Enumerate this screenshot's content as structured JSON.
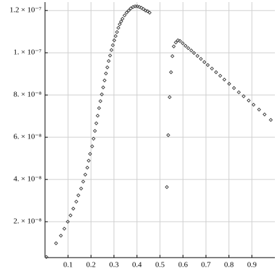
{
  "chart_data": {
    "type": "scatter",
    "xlim": [
      0,
      1
    ],
    "ylim": [
      3e-09,
      1.24e-07
    ],
    "xticks": [
      0.1,
      0.2,
      0.3,
      0.4,
      0.5,
      0.6,
      0.7,
      0.8,
      0.9
    ],
    "yticks": [
      {
        "value": 2e-08,
        "label": "2. × 10⁻⁸"
      },
      {
        "value": 4e-08,
        "label": "4. × 10⁻⁸"
      },
      {
        "value": 6e-08,
        "label": "6. × 10⁻⁸"
      },
      {
        "value": 8e-08,
        "label": "8. × 10⁻⁸"
      },
      {
        "value": 1e-07,
        "label": "1. × 10⁻⁷"
      },
      {
        "value": 1.2e-07,
        "label": "1.2 × 10⁻⁷"
      }
    ],
    "grid": true,
    "series": [
      {
        "color": "#333333",
        "x": [
          0.006,
          0.048,
          0.069,
          0.084,
          0.099,
          0.111,
          0.123,
          0.136,
          0.145,
          0.157,
          0.166,
          0.175,
          0.184,
          0.19,
          0.196,
          0.205,
          0.211,
          0.217,
          0.223,
          0.229,
          0.235,
          0.241,
          0.247,
          0.253,
          0.259,
          0.265,
          0.271,
          0.277,
          0.283,
          0.289,
          0.295,
          0.301,
          0.307,
          0.313,
          0.319,
          0.325,
          0.331,
          0.337,
          0.346,
          0.355,
          0.364,
          0.373,
          0.383,
          0.392,
          0.401,
          0.41,
          0.419,
          0.428,
          0.437,
          0.446,
          0.455,
          0.53,
          0.536,
          0.542,
          0.548,
          0.554,
          0.56,
          0.569,
          0.578,
          0.587,
          0.599,
          0.611,
          0.623,
          0.636,
          0.648,
          0.663,
          0.678,
          0.693,
          0.708,
          0.726,
          0.744,
          0.762,
          0.78,
          0.801,
          0.822,
          0.843,
          0.864,
          0.886,
          0.907,
          0.931,
          0.955,
          0.982
        ],
        "values": [
          3.3e-09,
          9.8e-09,
          1.34e-08,
          1.67e-08,
          2e-08,
          2.3e-08,
          2.62e-08,
          2.95e-08,
          3.25e-08,
          3.57e-08,
          3.9e-08,
          4.23e-08,
          4.56e-08,
          4.89e-08,
          5.21e-08,
          5.57e-08,
          5.93e-08,
          6.3e-08,
          6.66e-08,
          7.02e-08,
          7.38e-08,
          7.71e-08,
          8.03e-08,
          8.36e-08,
          8.69e-08,
          9.02e-08,
          9.31e-08,
          9.61e-08,
          9.87e-08,
          1.013e-07,
          1.036e-07,
          1.059e-07,
          1.079e-07,
          1.098e-07,
          1.118e-07,
          1.135e-07,
          1.148e-07,
          1.161e-07,
          1.177e-07,
          1.19e-07,
          1.2e-07,
          1.21e-07,
          1.217e-07,
          1.22e-07,
          1.22e-07,
          1.217e-07,
          1.213e-07,
          1.207e-07,
          1.2e-07,
          1.197e-07,
          1.19e-07,
          3.64e-08,
          6.1e-08,
          7.9e-08,
          9.08e-08,
          9.84e-08,
          1.03e-07,
          1.049e-07,
          1.059e-07,
          1.056e-07,
          1.045e-07,
          1.033e-07,
          1.022e-07,
          1.011e-07,
          9.99e-08,
          9.85e-08,
          9.71e-08,
          9.56e-08,
          9.42e-08,
          9.25e-08,
          9.08e-08,
          8.91e-08,
          8.73e-08,
          8.53e-08,
          8.33e-08,
          8.13e-08,
          7.94e-08,
          7.74e-08,
          7.54e-08,
          7.31e-08,
          7.08e-08,
          6.82e-08
        ]
      }
    ]
  }
}
